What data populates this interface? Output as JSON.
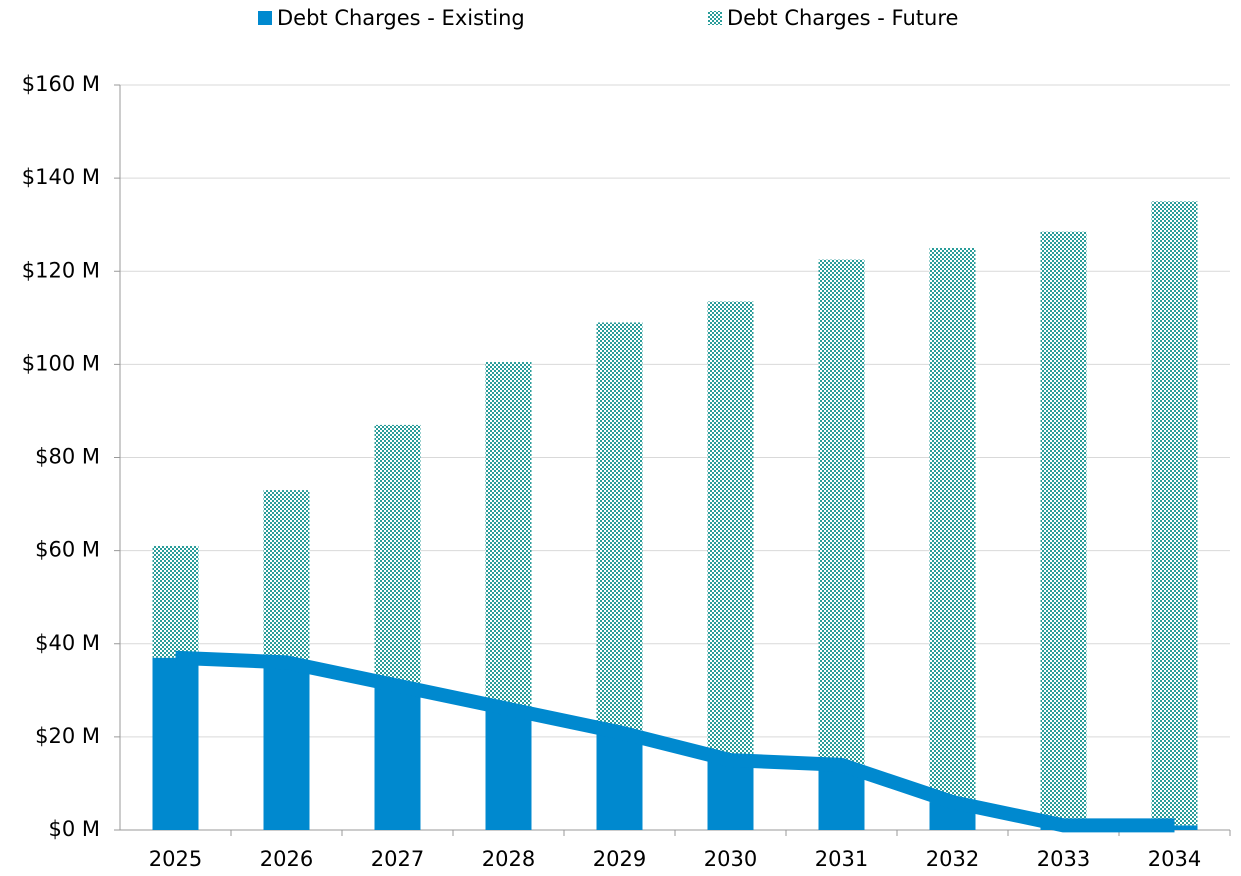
{
  "chart_data": {
    "type": "stacked_bar",
    "categories": [
      "2025",
      "2026",
      "2027",
      "2028",
      "2029",
      "2030",
      "2031",
      "2032",
      "2033",
      "2034"
    ],
    "series": [
      {
        "name": "Debt Charges - Existing",
        "color": "#0089cf",
        "values": [
          37,
          36,
          31,
          26,
          21,
          15,
          14,
          6,
          1,
          1
        ]
      },
      {
        "name": "Debt Charges - Future",
        "color": "#2a9d9a",
        "pattern": "dots",
        "values": [
          24,
          37,
          56,
          74.5,
          88,
          98.5,
          108.5,
          119,
          127.5,
          134
        ]
      }
    ],
    "ylim": [
      0,
      160
    ],
    "yticks": [
      {
        "value": 0,
        "label": "$0 M"
      },
      {
        "value": 20,
        "label": "$20 M"
      },
      {
        "value": 40,
        "label": "$40 M"
      },
      {
        "value": 60,
        "label": "$60 M"
      },
      {
        "value": 80,
        "label": "$80 M"
      },
      {
        "value": 100,
        "label": "$100 M"
      },
      {
        "value": 120,
        "label": "$120 M"
      },
      {
        "value": 140,
        "label": "$140 M"
      },
      {
        "value": 160,
        "label": "$160 M"
      }
    ],
    "grid": true,
    "legend": "top"
  }
}
